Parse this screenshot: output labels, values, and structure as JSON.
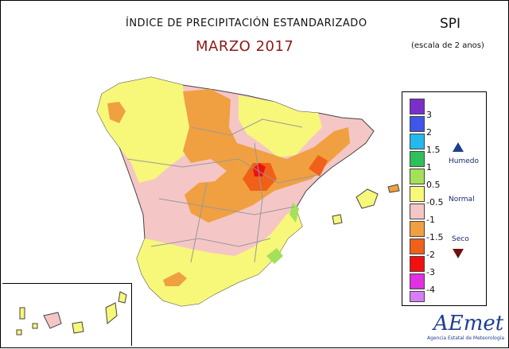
{
  "header": {
    "title": "ÍNDICE DE PRECIPITACIÓN ESTANDARIZADO",
    "subtitle": "MARZO 2017",
    "index_name": "SPI",
    "scale_note": "(escala de 2 anos)"
  },
  "legend": {
    "classes": [
      {
        "label": "3",
        "color": "#7b2fc9"
      },
      {
        "label": "2",
        "color": "#3f56e6"
      },
      {
        "label": "1.5",
        "color": "#25b8ea"
      },
      {
        "label": "1",
        "color": "#2fc05a"
      },
      {
        "label": "0.5",
        "color": "#a4e05a"
      },
      {
        "label": "-0.5",
        "color": "#f7f77a"
      },
      {
        "label": "-1",
        "color": "#f5c6c6"
      },
      {
        "label": "-1.5",
        "color": "#f0a040"
      },
      {
        "label": "-2",
        "color": "#f06018"
      },
      {
        "label": "-3",
        "color": "#f01010"
      },
      {
        "label": "-4",
        "color": "#e030e0"
      }
    ],
    "bottom_color": "#d57ef7",
    "humid_label": "Humedo",
    "normal_label": "Normal",
    "dry_label": "Seco",
    "humid_arrow": "triangle-up-icon",
    "dry_arrow": "triangle-down-icon"
  },
  "colors": {
    "land_normal": "#f5c6c6",
    "land_yellow": "#f7f77a",
    "land_orange": "#f0a040",
    "land_red": "#f01010",
    "land_darkorange": "#f06018",
    "land_green": "#a4e05a",
    "borders": "#999999"
  },
  "logo": {
    "name": "AEmet",
    "tagline": "Agencia Estatal de Meteorología"
  }
}
